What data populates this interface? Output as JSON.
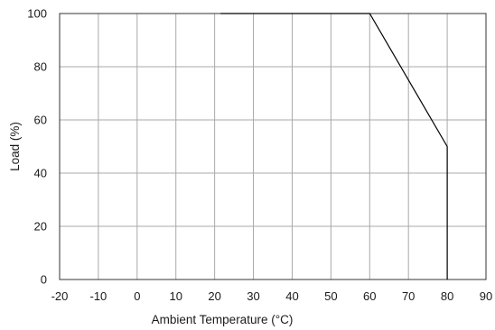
{
  "chart_data": {
    "type": "line",
    "title": "",
    "xlabel": "Ambient Temperature (°C)",
    "ylabel": "Load (%)",
    "xlim": [
      -20,
      90
    ],
    "ylim": [
      0,
      100
    ],
    "xticks": [
      -20,
      -10,
      0,
      10,
      20,
      30,
      40,
      50,
      60,
      70,
      80,
      90
    ],
    "yticks": [
      0,
      20,
      40,
      60,
      80,
      100
    ],
    "grid": true,
    "legend": "none",
    "series": [
      {
        "points": [
          [
            21.5,
            100
          ],
          [
            60,
            100
          ],
          [
            80,
            50
          ],
          [
            80,
            0
          ]
        ]
      }
    ],
    "colors": {
      "line": "#000000",
      "grid": "#a9a9a9",
      "frame": "#333333"
    }
  }
}
